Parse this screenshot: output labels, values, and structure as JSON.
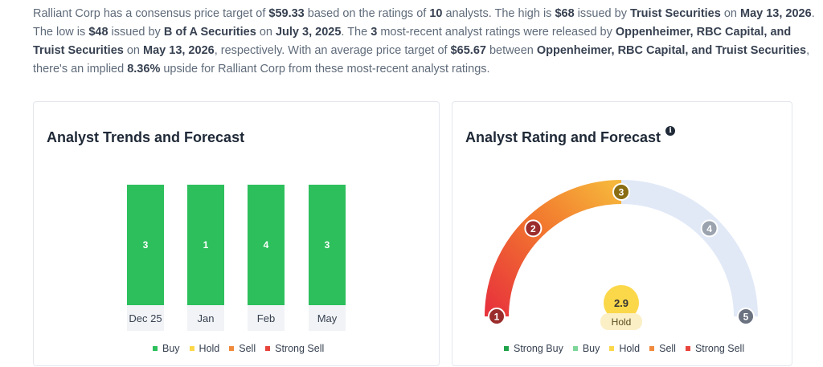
{
  "summary": {
    "p1": "Ralliant Corp has a consensus price target of ",
    "consensus": "$59.33",
    "p2": " based on the ratings of ",
    "num_analysts": "10",
    "p3": " analysts. The high is ",
    "high": "$68",
    "p4": " issued by ",
    "high_firm": "Truist Securities",
    "p5": " on ",
    "high_date": "May 13, 2026",
    "p6": ". The low is ",
    "low": "$48",
    "p7": " issued by ",
    "low_firm": "B of A Securities",
    "p8": " on ",
    "low_date": "July 3, 2025",
    "p9": ". The ",
    "recent_count": "3",
    "p10": " most-recent analyst ratings were released by ",
    "recent_firms": "Oppenheimer, RBC Capital, and Truist Securities",
    "p11": " on ",
    "recent_date": "May 13, 2026",
    "p12": ", respectively. With an average price target of ",
    "avg_target": "$65.67",
    "p13": " between ",
    "avg_firms": "Oppenheimer, RBC Capital, and Truist Securities",
    "p14": ", there's an implied ",
    "upside": "8.36%",
    "p15": " upside for Ralliant Corp from these most-recent analyst ratings."
  },
  "trends": {
    "title": "Analyst Trends and Forecast",
    "legend": [
      {
        "label": "Buy",
        "color": "#2dbf5c"
      },
      {
        "label": "Hold",
        "color": "#fbd84a"
      },
      {
        "label": "Sell",
        "color": "#f08a3c"
      },
      {
        "label": "Strong Sell",
        "color": "#e8443c"
      }
    ]
  },
  "rating": {
    "title": "Analyst Rating and Forecast",
    "info_icon": "info-icon",
    "score": "2.9",
    "score_label": "Hold",
    "marker_numbers": [
      "1",
      "2",
      "3",
      "4",
      "5"
    ],
    "legend": [
      {
        "label": "Strong Buy",
        "color": "#1fa34a"
      },
      {
        "label": "Buy",
        "color": "#7ed69a"
      },
      {
        "label": "Hold",
        "color": "#fbd84a"
      },
      {
        "label": "Sell",
        "color": "#f08a3c"
      },
      {
        "label": "Strong Sell",
        "color": "#e8443c"
      }
    ]
  },
  "chart_data": {
    "type": "bar",
    "categories": [
      "Dec 25",
      "Jan",
      "Feb",
      "May"
    ],
    "series": [
      {
        "name": "Buy",
        "values": [
          3,
          1,
          4,
          3
        ]
      }
    ],
    "title": "Analyst Trends and Forecast",
    "stacked": true,
    "legend_position": "bottom"
  }
}
